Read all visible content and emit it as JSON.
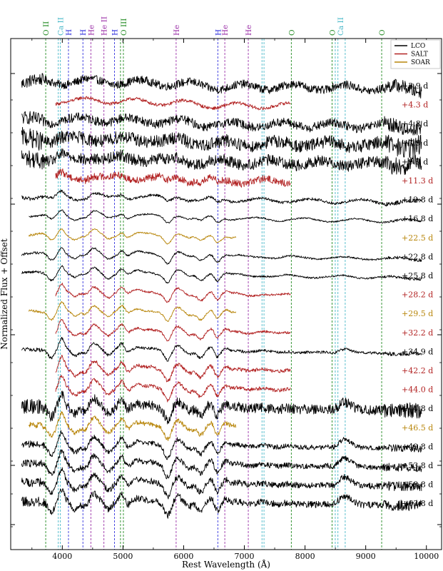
{
  "chart_data": {
    "type": "line",
    "xlabel": "Rest Wavelength (Å)",
    "ylabel": "Normalized Flux + Offset",
    "xlim": [
      3150,
      10250
    ],
    "x_ticks": [
      {
        "value": 4000,
        "label": "4000"
      },
      {
        "value": 5000,
        "label": "5000"
      },
      {
        "value": 6000,
        "label": "6000"
      },
      {
        "value": 7000,
        "label": "7000"
      },
      {
        "value": 8000,
        "label": "8000"
      },
      {
        "value": 9000,
        "label": "9000"
      },
      {
        "value": 10000,
        "label": "10000"
      }
    ],
    "legend": {
      "placement": "top-right",
      "entries": [
        {
          "label": "LCO",
          "color": "#000000"
        },
        {
          "label": "SALT",
          "color": "#b22222"
        },
        {
          "label": "SOAR",
          "color": "#b8860b"
        }
      ]
    },
    "instrument_colors": {
      "LCO": "#000000",
      "SALT": "#b22222",
      "SOAR": "#b8860b"
    },
    "line_markers": [
      {
        "label": "O II",
        "wavelengths": [
          3727
        ],
        "color": "#228b22",
        "label_at": 3727
      },
      {
        "label": "Ca II",
        "wavelengths": [
          3934,
          3968
        ],
        "color": "#48b8c8",
        "label_at": 3965
      },
      {
        "label": "H",
        "wavelengths": [
          4102
        ],
        "color": "#3333dd",
        "label_at": 4102
      },
      {
        "label": "H",
        "wavelengths": [
          4340
        ],
        "color": "#3333dd",
        "label_at": 4340
      },
      {
        "label": "He",
        "wavelengths": [
          4471
        ],
        "color": "#9b30a8",
        "label_at": 4471
      },
      {
        "label": "He II",
        "wavelengths": [
          4686
        ],
        "color": "#9b30a8",
        "label_at": 4686
      },
      {
        "label": "H",
        "wavelengths": [
          4861
        ],
        "color": "#3333dd",
        "label_at": 4861
      },
      {
        "label": "O III",
        "wavelengths": [
          4959,
          5007
        ],
        "color": "#228b22",
        "label_at": 5007
      },
      {
        "label": "He",
        "wavelengths": [
          5876
        ],
        "color": "#9b30a8",
        "label_at": 5876
      },
      {
        "label": "H",
        "wavelengths": [
          6563
        ],
        "color": "#3333dd",
        "label_at": 6563
      },
      {
        "label": "He",
        "wavelengths": [
          6678
        ],
        "color": "#9b30a8",
        "label_at": 6678
      },
      {
        "label": "He",
        "wavelengths": [
          7065
        ],
        "color": "#9b30a8",
        "label_at": 7065
      },
      {
        "label": "",
        "wavelengths": [
          7291,
          7324
        ],
        "color": "#48b8c8",
        "label_at": 7300
      },
      {
        "label": "O",
        "wavelengths": [
          7774
        ],
        "color": "#228b22",
        "label_at": 7774
      },
      {
        "label": "O",
        "wavelengths": [
          8446
        ],
        "color": "#228b22",
        "label_at": 8446
      },
      {
        "label": "Ca II",
        "wavelengths": [
          8498,
          8542,
          8662
        ],
        "color": "#48b8c8",
        "label_at": 8580
      },
      {
        "label": "O",
        "wavelengths": [
          9263
        ],
        "color": "#228b22",
        "label_at": 9263
      }
    ],
    "series": [
      {
        "name": "+3.9 d",
        "instrument": "LCO",
        "range": [
          3330,
          9920
        ],
        "offset": 0,
        "noise": 0.55,
        "dev": 0.0
      },
      {
        "name": "+4.3 d",
        "instrument": "SALT",
        "range": [
          3890,
          7760
        ],
        "offset": 1,
        "noise": 0.22,
        "dev": 0.03
      },
      {
        "name": "+4.8 d",
        "instrument": "LCO",
        "range": [
          3330,
          9920
        ],
        "offset": 2,
        "noise": 0.6,
        "dev": 0.05
      },
      {
        "name": "+7.9 d",
        "instrument": "LCO",
        "range": [
          3330,
          9920
        ],
        "offset": 3,
        "noise": 0.85,
        "dev": 0.1
      },
      {
        "name": "+9.9 d",
        "instrument": "LCO",
        "range": [
          3330,
          9920
        ],
        "offset": 4,
        "noise": 0.75,
        "dev": 0.16
      },
      {
        "name": "+11.3 d",
        "instrument": "SALT",
        "range": [
          3890,
          7760
        ],
        "offset": 5,
        "noise": 0.5,
        "dev": 0.22
      },
      {
        "name": "+12.8 d",
        "instrument": "LCO",
        "range": [
          3330,
          9920
        ],
        "offset": 6,
        "noise": 0.18,
        "dev": 0.3
      },
      {
        "name": "+16.8 d",
        "instrument": "LCO",
        "range": [
          3450,
          9920
        ],
        "offset": 7,
        "noise": 0.1,
        "dev": 0.42
      },
      {
        "name": "+22.5 d",
        "instrument": "SOAR",
        "range": [
          3450,
          6860
        ],
        "offset": 8,
        "noise": 0.1,
        "dev": 0.52
      },
      {
        "name": "+22.8 d",
        "instrument": "LCO",
        "range": [
          3330,
          9920
        ],
        "offset": 9,
        "noise": 0.12,
        "dev": 0.56
      },
      {
        "name": "+25.8 d",
        "instrument": "LCO",
        "range": [
          3330,
          9920
        ],
        "offset": 10,
        "noise": 0.12,
        "dev": 0.62
      },
      {
        "name": "+28.2 d",
        "instrument": "SALT",
        "range": [
          3890,
          7760
        ],
        "offset": 11,
        "noise": 0.14,
        "dev": 0.68
      },
      {
        "name": "+29.5 d",
        "instrument": "SOAR",
        "range": [
          3450,
          6860
        ],
        "offset": 12,
        "noise": 0.12,
        "dev": 0.72
      },
      {
        "name": "+32.2 d",
        "instrument": "SALT",
        "range": [
          3890,
          7760
        ],
        "offset": 13,
        "noise": 0.16,
        "dev": 0.78
      },
      {
        "name": "+34.9 d",
        "instrument": "LCO",
        "range": [
          3330,
          9920
        ],
        "offset": 14,
        "noise": 0.18,
        "dev": 0.82
      },
      {
        "name": "+42.2 d",
        "instrument": "SALT",
        "range": [
          3890,
          7760
        ],
        "offset": 15,
        "noise": 0.24,
        "dev": 0.92
      },
      {
        "name": "+44.0 d",
        "instrument": "SALT",
        "range": [
          3890,
          7760
        ],
        "offset": 16,
        "noise": 0.24,
        "dev": 0.95
      },
      {
        "name": "+44.8 d",
        "instrument": "LCO",
        "range": [
          3330,
          9920
        ],
        "offset": 17,
        "noise": 0.65,
        "dev": 0.96
      },
      {
        "name": "+46.5 d",
        "instrument": "SOAR",
        "range": [
          3450,
          6860
        ],
        "offset": 18,
        "noise": 0.3,
        "dev": 0.98
      },
      {
        "name": "+49.8 d",
        "instrument": "LCO",
        "range": [
          3330,
          9920
        ],
        "offset": 19,
        "noise": 0.32,
        "dev": 1.0
      },
      {
        "name": "+53.8 d",
        "instrument": "LCO",
        "range": [
          3330,
          9920
        ],
        "offset": 20,
        "noise": 0.35,
        "dev": 1.0
      },
      {
        "name": "+58.8 d",
        "instrument": "LCO",
        "range": [
          3330,
          9920
        ],
        "offset": 21,
        "noise": 0.4,
        "dev": 1.0
      },
      {
        "name": "+63.8 d",
        "instrument": "LCO",
        "range": [
          3330,
          9920
        ],
        "offset": 22,
        "noise": 0.45,
        "dev": 1.0
      }
    ]
  }
}
